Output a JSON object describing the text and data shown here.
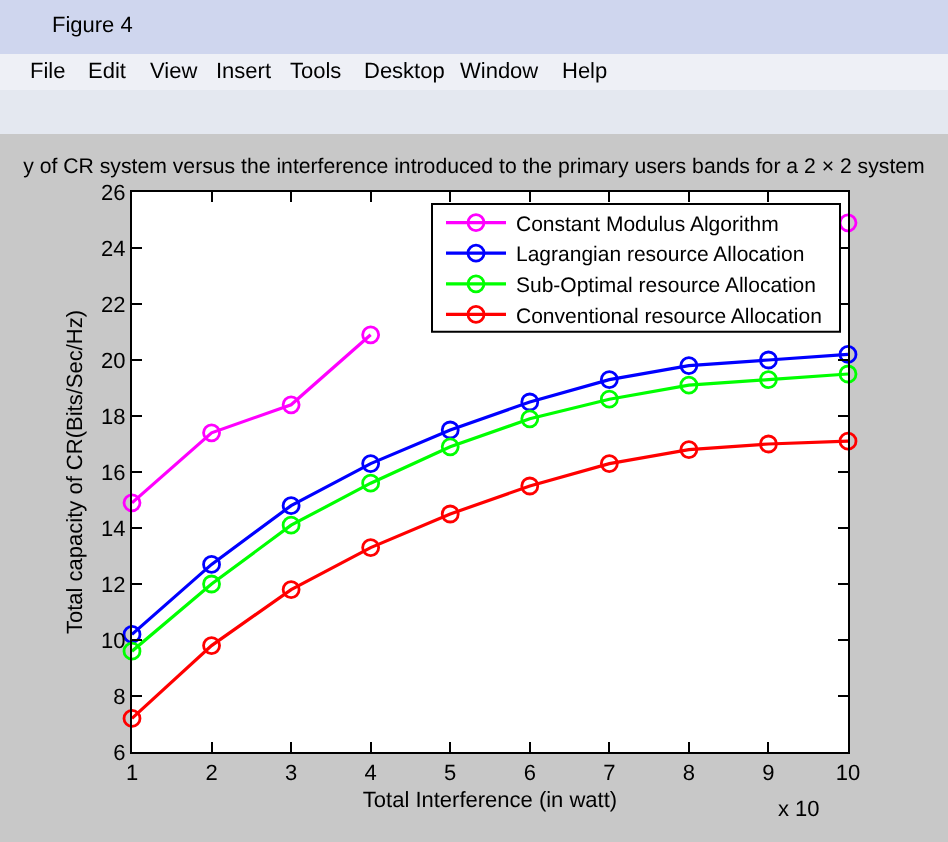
{
  "chart_data": {
    "type": "line",
    "title": "y of CR system versus the interference introduced to the primary users bands for a 2 × 2 system",
    "xlabel": "Total Interference (in watt)",
    "ylabel": "Total capacity of CR(Bits/Sec/Hz)",
    "annotations": [
      "Figure 4",
      "File",
      "Edit",
      "View",
      "Insert",
      "Tools",
      "Desktop",
      "Window",
      "Help",
      "x 10"
    ],
    "x": [
      1,
      2,
      3,
      4,
      5,
      6,
      7,
      8,
      9,
      10
    ],
    "series": [
      {
        "name": "Constant Modulus Algorithm",
        "color": "#ff00ff",
        "values": [
          14.9,
          17.4,
          18.4,
          20.9,
          null,
          null,
          null,
          null,
          null,
          24.9
        ]
      },
      {
        "name": "Lagrangian resource Allocation",
        "color": "#0000ff",
        "values": [
          10.2,
          12.7,
          14.8,
          16.3,
          17.5,
          18.5,
          19.3,
          19.8,
          20.0,
          20.2
        ]
      },
      {
        "name": "Sub-Optimal resource Allocation",
        "color": "#00ff00",
        "values": [
          9.6,
          12.0,
          14.1,
          15.6,
          16.9,
          17.9,
          18.6,
          19.1,
          19.3,
          19.5
        ]
      },
      {
        "name": "Conventional resource Allocation",
        "color": "#ff0000",
        "values": [
          7.2,
          9.8,
          11.8,
          13.3,
          14.5,
          15.5,
          16.3,
          16.8,
          17.0,
          17.1
        ]
      }
    ],
    "xlim": [
      1,
      10
    ],
    "xticks": [
      1,
      2,
      3,
      4,
      5,
      6,
      7,
      8,
      9,
      10
    ],
    "ylim": [
      6,
      26
    ],
    "yticks": [
      6,
      8,
      10,
      12,
      14,
      16,
      18,
      20,
      22,
      24,
      26
    ],
    "legend": "top right",
    "marker": "circle",
    "line_style": "solid"
  }
}
